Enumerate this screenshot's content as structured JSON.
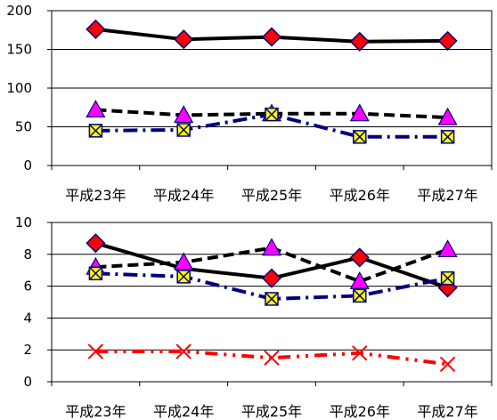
{
  "chart_data": [
    {
      "type": "line",
      "categories": [
        "平成23年",
        "平成24年",
        "平成25年",
        "平成26年",
        "平成27年"
      ],
      "ylim": [
        0,
        200
      ],
      "yticks": [
        0,
        50,
        100,
        150,
        200
      ],
      "grid": true,
      "series": [
        {
          "values": [
            176,
            163,
            166,
            160,
            161
          ],
          "color": "#000000",
          "line": "solid",
          "marker": "diamond",
          "marker_fill": "#ff0000"
        },
        {
          "values": [
            72,
            65,
            67,
            67,
            62
          ],
          "color": "#000000",
          "line": "dash",
          "marker": "triangle",
          "marker_fill": "#ff00ff"
        },
        {
          "values": [
            45,
            46,
            66,
            37,
            37
          ],
          "color": "#000080",
          "line": "dashdot",
          "marker": "xbox",
          "marker_fill": "#ffff00"
        }
      ]
    },
    {
      "type": "line",
      "categories": [
        "平成23年",
        "平成24年",
        "平成25年",
        "平成26年",
        "平成27年"
      ],
      "ylim": [
        0,
        10
      ],
      "yticks": [
        0,
        2,
        4,
        6,
        8,
        10
      ],
      "grid": true,
      "series": [
        {
          "values": [
            8.7,
            7.1,
            6.5,
            7.8,
            5.9
          ],
          "color": "#000000",
          "line": "solid",
          "marker": "diamond",
          "marker_fill": "#ff0000"
        },
        {
          "values": [
            7.2,
            7.5,
            8.4,
            6.3,
            8.3
          ],
          "color": "#000000",
          "line": "dash",
          "marker": "triangle",
          "marker_fill": "#ff00ff"
        },
        {
          "values": [
            6.8,
            6.6,
            5.2,
            5.4,
            6.5
          ],
          "color": "#000080",
          "line": "dashdot",
          "marker": "xbox",
          "marker_fill": "#ffff00"
        },
        {
          "values": [
            1.9,
            1.9,
            1.5,
            1.8,
            1.1
          ],
          "color": "#ff0000",
          "line": "dashdotdot",
          "marker": "x",
          "marker_fill": "#ff0000"
        }
      ]
    }
  ]
}
